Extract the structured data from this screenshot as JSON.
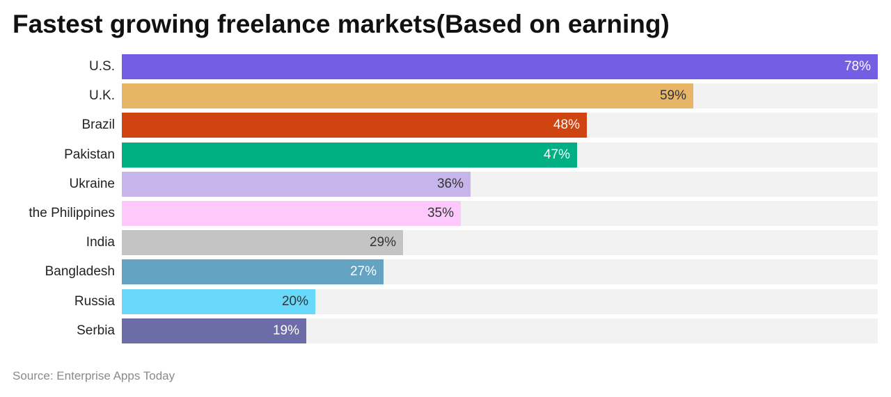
{
  "title": "Fastest growing freelance markets(Based on earning)",
  "source": "Source: Enterprise Apps Today",
  "chart_data": {
    "type": "bar",
    "orientation": "horizontal",
    "title": "Fastest growing freelance markets(Based on earning)",
    "xlim": [
      0,
      78
    ],
    "grid": false,
    "categories": [
      "U.S.",
      "U.K.",
      "Brazil",
      "Pakistan",
      "Ukraine",
      "the Philippines",
      "India",
      "Bangladesh",
      "Russia",
      "Serbia"
    ],
    "values": [
      78,
      59,
      48,
      47,
      36,
      35,
      29,
      27,
      20,
      19
    ],
    "value_labels": [
      "78%",
      "59%",
      "48%",
      "47%",
      "36%",
      "35%",
      "29%",
      "27%",
      "20%",
      "19%"
    ],
    "colors": [
      "#735ee4",
      "#e6b566",
      "#cf4411",
      "#00b083",
      "#c6b4ea",
      "#fdc8fc",
      "#c4c4c4",
      "#64a2c1",
      "#69d9fb",
      "#6c6ca8"
    ],
    "label_colors": [
      "#ffffff",
      "#333333",
      "#ffffff",
      "#ffffff",
      "#333333",
      "#333333",
      "#333333",
      "#ffffff",
      "#333333",
      "#ffffff"
    ]
  }
}
